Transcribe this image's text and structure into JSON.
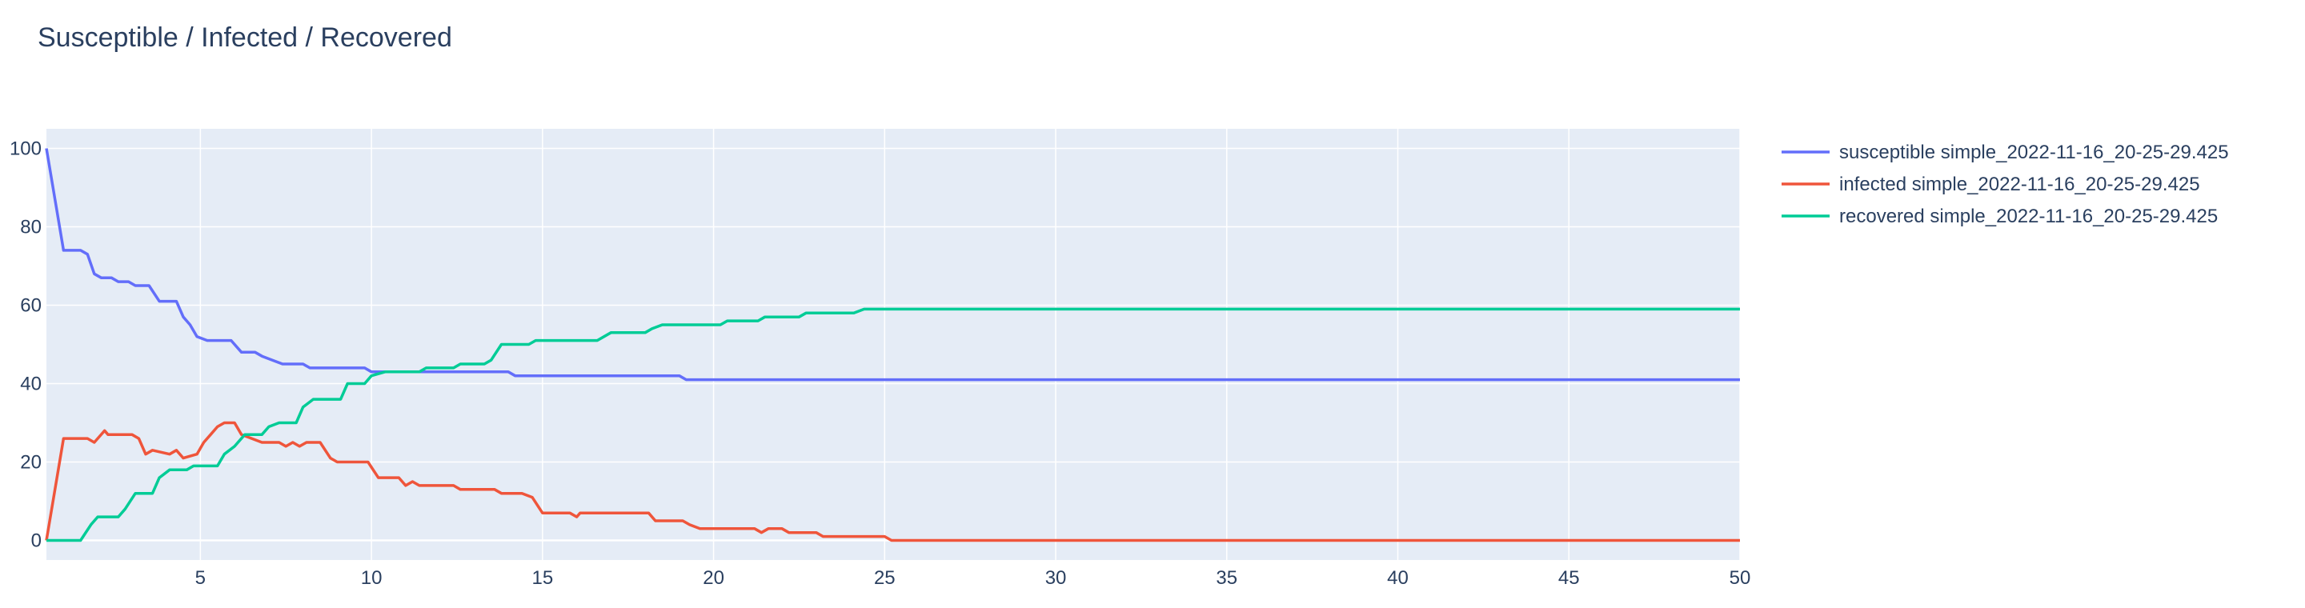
{
  "chart_data": {
    "type": "line",
    "title": "Susceptible / Infected / Recovered",
    "xlabel": "",
    "ylabel": "",
    "xlim": [
      0.5,
      50
    ],
    "ylim": [
      -5,
      105
    ],
    "x_ticks": [
      5,
      10,
      15,
      20,
      25,
      30,
      35,
      40,
      45,
      50
    ],
    "y_ticks": [
      0,
      20,
      40,
      60,
      80,
      100
    ],
    "grid": true,
    "legend_position": "top-right",
    "series": [
      {
        "name": "susceptible simple_2022-11-16_20-25-29.425",
        "color": "#636efa",
        "points": [
          [
            0.5,
            100
          ],
          [
            1,
            74
          ],
          [
            1.5,
            74
          ],
          [
            1.7,
            73
          ],
          [
            1.9,
            68
          ],
          [
            2.1,
            67
          ],
          [
            2.4,
            67
          ],
          [
            2.6,
            66
          ],
          [
            2.9,
            66
          ],
          [
            3.1,
            65
          ],
          [
            3.5,
            65
          ],
          [
            3.8,
            61
          ],
          [
            4.3,
            61
          ],
          [
            4.5,
            57
          ],
          [
            4.7,
            55
          ],
          [
            4.9,
            52
          ],
          [
            5.2,
            51
          ],
          [
            5.9,
            51
          ],
          [
            6.2,
            48
          ],
          [
            6.6,
            48
          ],
          [
            6.8,
            47
          ],
          [
            7.1,
            46
          ],
          [
            7.4,
            45
          ],
          [
            8,
            45
          ],
          [
            8.2,
            44
          ],
          [
            9.8,
            44
          ],
          [
            10,
            43
          ],
          [
            14,
            43
          ],
          [
            14.2,
            42
          ],
          [
            19,
            42
          ],
          [
            19.2,
            41
          ],
          [
            50,
            41
          ]
        ]
      },
      {
        "name": "infected simple_2022-11-16_20-25-29.425",
        "color": "#ef553b",
        "points": [
          [
            0.5,
            0
          ],
          [
            1,
            26
          ],
          [
            1.7,
            26
          ],
          [
            1.9,
            25
          ],
          [
            2.2,
            28
          ],
          [
            2.3,
            27
          ],
          [
            3,
            27
          ],
          [
            3.2,
            26
          ],
          [
            3.4,
            22
          ],
          [
            3.6,
            23
          ],
          [
            4.1,
            22
          ],
          [
            4.3,
            23
          ],
          [
            4.5,
            21
          ],
          [
            4.9,
            22
          ],
          [
            5.1,
            25
          ],
          [
            5.3,
            27
          ],
          [
            5.5,
            29
          ],
          [
            5.7,
            30
          ],
          [
            6,
            30
          ],
          [
            6.2,
            27
          ],
          [
            6.5,
            26
          ],
          [
            6.8,
            25
          ],
          [
            7.3,
            25
          ],
          [
            7.5,
            24
          ],
          [
            7.7,
            25
          ],
          [
            7.9,
            24
          ],
          [
            8.1,
            25
          ],
          [
            8.5,
            25
          ],
          [
            8.8,
            21
          ],
          [
            9,
            20
          ],
          [
            9.9,
            20
          ],
          [
            10.2,
            16
          ],
          [
            10.8,
            16
          ],
          [
            11,
            14
          ],
          [
            11.2,
            15
          ],
          [
            11.4,
            14
          ],
          [
            12.4,
            14
          ],
          [
            12.6,
            13
          ],
          [
            13.6,
            13
          ],
          [
            13.8,
            12
          ],
          [
            14.4,
            12
          ],
          [
            14.7,
            11
          ],
          [
            15,
            7
          ],
          [
            15.8,
            7
          ],
          [
            16,
            6
          ],
          [
            16.1,
            7
          ],
          [
            18.1,
            7
          ],
          [
            18.3,
            5
          ],
          [
            19.1,
            5
          ],
          [
            19.3,
            4
          ],
          [
            19.6,
            3
          ],
          [
            21.2,
            3
          ],
          [
            21.4,
            2
          ],
          [
            21.6,
            3
          ],
          [
            22,
            3
          ],
          [
            22.2,
            2
          ],
          [
            23,
            2
          ],
          [
            23.2,
            1
          ],
          [
            25,
            1
          ],
          [
            25.2,
            0
          ],
          [
            50,
            0
          ]
        ]
      },
      {
        "name": "recovered simple_2022-11-16_20-25-29.425",
        "color": "#00cc96",
        "points": [
          [
            0.5,
            0
          ],
          [
            1.5,
            0
          ],
          [
            1.8,
            4
          ],
          [
            2,
            6
          ],
          [
            2.3,
            6
          ],
          [
            2.6,
            6
          ],
          [
            2.8,
            8
          ],
          [
            3.1,
            12
          ],
          [
            3.6,
            12
          ],
          [
            3.8,
            16
          ],
          [
            4.1,
            18
          ],
          [
            4.6,
            18
          ],
          [
            4.8,
            19
          ],
          [
            5.5,
            19
          ],
          [
            5.7,
            22
          ],
          [
            6,
            24
          ],
          [
            6.3,
            27
          ],
          [
            6.8,
            27
          ],
          [
            7,
            29
          ],
          [
            7.3,
            30
          ],
          [
            7.8,
            30
          ],
          [
            8,
            34
          ],
          [
            8.3,
            36
          ],
          [
            9.1,
            36
          ],
          [
            9.3,
            40
          ],
          [
            9.8,
            40
          ],
          [
            10,
            42
          ],
          [
            10.4,
            43
          ],
          [
            11.4,
            43
          ],
          [
            11.6,
            44
          ],
          [
            12.4,
            44
          ],
          [
            12.6,
            45
          ],
          [
            13.3,
            45
          ],
          [
            13.5,
            46
          ],
          [
            13.8,
            50
          ],
          [
            14.6,
            50
          ],
          [
            14.8,
            51
          ],
          [
            16.6,
            51
          ],
          [
            16.8,
            52
          ],
          [
            17,
            53
          ],
          [
            18,
            53
          ],
          [
            18.2,
            54
          ],
          [
            18.5,
            55
          ],
          [
            20.2,
            55
          ],
          [
            20.4,
            56
          ],
          [
            21.3,
            56
          ],
          [
            21.5,
            57
          ],
          [
            22.5,
            57
          ],
          [
            22.7,
            58
          ],
          [
            24.1,
            58
          ],
          [
            24.4,
            59
          ],
          [
            50,
            59
          ]
        ]
      }
    ]
  }
}
